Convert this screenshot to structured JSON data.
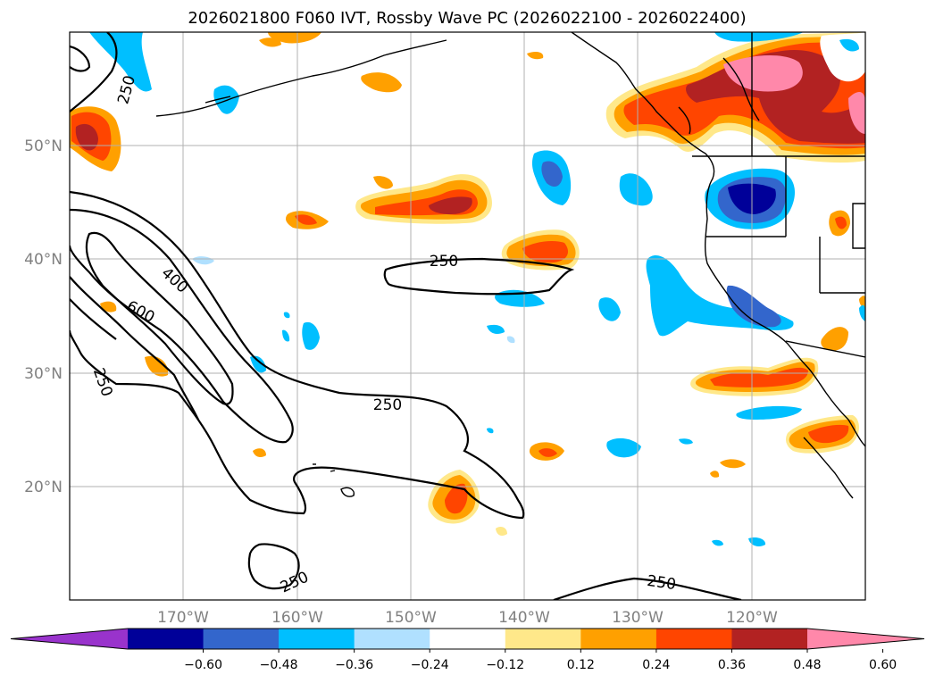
{
  "title": "2026021800 F060 IVT, Rossby Wave PC (2026022100 - 2026022400)",
  "lat_labels": [
    "50°N",
    "40°N",
    "30°N",
    "20°N"
  ],
  "lon_labels": [
    "170°W",
    "160°W",
    "150°W",
    "140°W",
    "130°W",
    "120°W"
  ],
  "contour_labels": [
    "250",
    "250",
    "400",
    "600",
    "250",
    "250",
    "250",
    "250"
  ],
  "colorbar": {
    "ticks": [
      "−0.60",
      "−0.48",
      "−0.36",
      "−0.24",
      "−0.12",
      "0.12",
      "0.24",
      "0.36",
      "0.48",
      "0.60"
    ],
    "colors": [
      "#9933cc",
      "#000099",
      "#3366cc",
      "#00bfff",
      "#b0e0ff",
      "#ffffff",
      "#ffe88a",
      "#ffa000",
      "#ff4500",
      "#b22222",
      "#ff88aa"
    ]
  }
}
